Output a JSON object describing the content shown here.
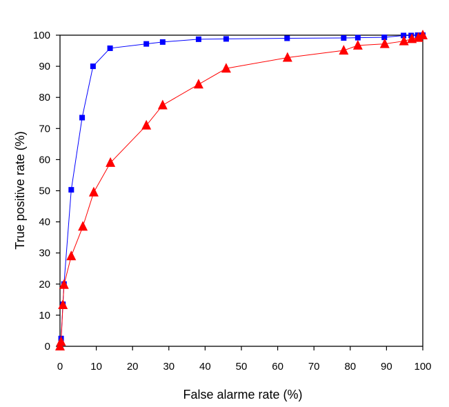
{
  "chart_data": {
    "type": "line",
    "xlabel": "False alarme rate (%)",
    "ylabel": "True positive rate (%)",
    "xlim": [
      0,
      100
    ],
    "ylim": [
      0,
      100
    ],
    "x_ticks": [
      0,
      10,
      20,
      30,
      40,
      50,
      60,
      70,
      80,
      90,
      100
    ],
    "y_ticks": [
      0,
      10,
      20,
      30,
      40,
      50,
      60,
      70,
      80,
      90,
      100
    ],
    "grid": false,
    "legend": "none",
    "series": [
      {
        "color": "#0000ff",
        "marker": "square",
        "points": [
          {
            "x": 0,
            "y": 0
          },
          {
            "x": 0.3,
            "y": 2.5
          },
          {
            "x": 0.8,
            "y": 13.5
          },
          {
            "x": 1.1,
            "y": 20
          },
          {
            "x": 3.1,
            "y": 50.3
          },
          {
            "x": 6.1,
            "y": 73.5
          },
          {
            "x": 9.1,
            "y": 90
          },
          {
            "x": 13.8,
            "y": 95.8
          },
          {
            "x": 23.8,
            "y": 97.2
          },
          {
            "x": 28.3,
            "y": 97.8
          },
          {
            "x": 38.2,
            "y": 98.7
          },
          {
            "x": 45.8,
            "y": 98.8
          },
          {
            "x": 62.6,
            "y": 99
          },
          {
            "x": 78.2,
            "y": 99.1
          },
          {
            "x": 82.1,
            "y": 99.2
          },
          {
            "x": 89.4,
            "y": 99.3
          },
          {
            "x": 94.7,
            "y": 99.9
          },
          {
            "x": 96.8,
            "y": 99.9
          },
          {
            "x": 98.6,
            "y": 100
          },
          {
            "x": 100,
            "y": 100
          }
        ]
      },
      {
        "color": "#ff0000",
        "marker": "triangle",
        "points": [
          {
            "x": 0,
            "y": 0
          },
          {
            "x": 0.3,
            "y": 1.5
          },
          {
            "x": 0.8,
            "y": 13.3
          },
          {
            "x": 1.1,
            "y": 19.8
          },
          {
            "x": 3.1,
            "y": 29
          },
          {
            "x": 6.3,
            "y": 38.5
          },
          {
            "x": 9.3,
            "y": 49.5
          },
          {
            "x": 13.9,
            "y": 59
          },
          {
            "x": 23.8,
            "y": 71
          },
          {
            "x": 28.3,
            "y": 77.5
          },
          {
            "x": 38.2,
            "y": 84.2
          },
          {
            "x": 45.8,
            "y": 89.3
          },
          {
            "x": 62.7,
            "y": 92.8
          },
          {
            "x": 78.2,
            "y": 95.1
          },
          {
            "x": 82.1,
            "y": 96.7
          },
          {
            "x": 89.5,
            "y": 97.2
          },
          {
            "x": 94.8,
            "y": 98.1
          },
          {
            "x": 97,
            "y": 98.8
          },
          {
            "x": 98.8,
            "y": 99.2
          },
          {
            "x": 100,
            "y": 100
          }
        ]
      }
    ]
  }
}
